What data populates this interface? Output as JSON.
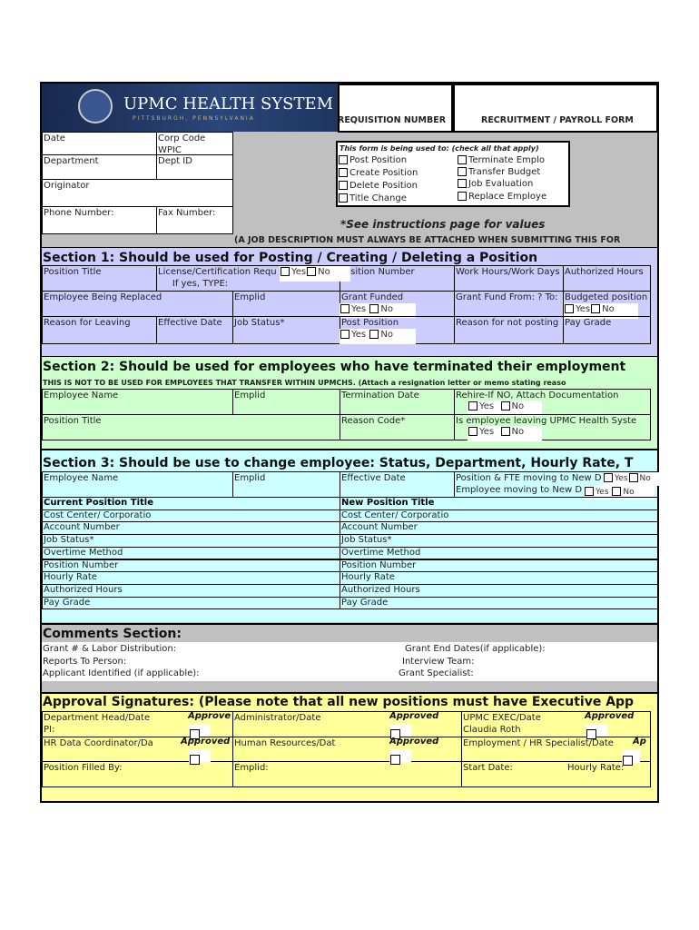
{
  "header": {
    "logo_text": "UPMC HEALTH SYSTEM",
    "logo_subtext": "PITTSBURGH, PENNSYLVANIA",
    "requisition_label": "REQUISITION NUMBER",
    "form_title": "RECRUITMENT / PAYROLL FORM"
  },
  "top": {
    "date": "Date",
    "corp_code": "Corp Code",
    "corp_code_value": "WPIC",
    "department": "Department",
    "dept_id": "Dept ID",
    "originator": "Originator",
    "phone": "Phone Number:",
    "fax": "Fax Number:",
    "instructions": "*See instructions page for values",
    "job_desc_note": "(A JOB DESCRIPTION MUST ALWAYS BE ATTACHED WHEN SUBMITTING THIS FOR"
  },
  "usage": {
    "title": "This form is being used to: (check all that apply)",
    "options": [
      "Post Position",
      "Create Position",
      "Delete Position",
      "Title Change",
      "Terminate Emplo",
      "Transfer Budget",
      "Job Evaluation",
      "Replace Employe"
    ]
  },
  "yes": "Yes",
  "no": "No",
  "section1": {
    "title": "Section 1: Should be used for Posting / Creating / Deleting a Position",
    "position_title": "Position Title",
    "license": "License/Certification Requ",
    "if_yes": "If yes, TYPE:",
    "position_number": "osition Number",
    "work_hours": "Work Hours/Work Days",
    "authorized_hours": "Authorized Hours",
    "employee_replaced": "Employee Being Replaced",
    "emplid": "Emplid",
    "grant_funded": "Grant Funded",
    "grant_fund_from": "Grant Fund From: ?  To:",
    "budgeted_position": "Budgeted position",
    "reason_leaving": "Reason for Leaving",
    "effective_date": "Effective Date",
    "job_status": "Job Status*",
    "post_position": "Post Position",
    "reason_not_posting": "Reason for not posting",
    "pay_grade": "Pay Grade"
  },
  "section2": {
    "title": "Section 2: Should be used for employees who have terminated their employment",
    "note": "THIS IS NOT TO BE USED FOR EMPLOYEES THAT TRANSFER WITHIN UPMCHS. (Attach a resignation letter or memo stating reaso",
    "employee_name": "Employee Name",
    "emplid": "Emplid",
    "termination_date": "Termination Date",
    "rehire": "Rehire-If NO, Attach Documentation",
    "position_title": "Position Title",
    "reason_code": "Reason Code*",
    "leaving": "Is employee leaving UPMC Health Syste"
  },
  "section3": {
    "title": "Section 3: Should be use to change employee: Status, Department, Hourly Rate, T",
    "employee_name": "Employee Name",
    "emplid": "Emplid",
    "effective_date": "Effective Date",
    "position_fte": "Position & FTE moving to New D",
    "employee_moving": "Employee moving to New D",
    "current_title": "Current Position Title",
    "new_title": "New Position Title",
    "current_rows": [
      "Cost Center/ Corporatio",
      "Account Number",
      "Job Status*",
      "Overtime Method",
      "Position Number",
      "Hourly Rate",
      "Authorized Hours",
      "Pay Grade"
    ],
    "new_rows": [
      "Cost Center/ Corporatio",
      "Account Number",
      " Job Status*",
      "Overtime Method",
      "Position Number",
      "Hourly Rate",
      "Authorized Hours",
      "Pay Grade"
    ]
  },
  "comments": {
    "title": "Comments Section:",
    "left": [
      "Grant # & Labor Distribution:",
      "Reports To Person:",
      "Applicant Identified (if applicable):"
    ],
    "right": [
      "Grant End Dates(if applicable):",
      "Interview Team:",
      "Grant Specialist:"
    ]
  },
  "approvals": {
    "title": "Approval Signatures: (Please note that all new positions must have Executive App",
    "dept_head": "Department Head/Date",
    "pi": "PI:",
    "administrator": "Administrator/Date",
    "exec": "UPMC EXEC/Date",
    "exec_name": "Claudia Roth",
    "hr_coord": "HR Data Coordinator/Da",
    "hr": "Human Resources/Dat",
    "employment": "Employment / HR Specialist/Date",
    "approved_short": "Approve",
    "approved": "Approved",
    "approved_cut": "Ap",
    "filled_by": "Position Filled By:",
    "emplid": "Emplid:",
    "start_date": "Start Date:",
    "hourly_rate": "Hourly Rate:"
  },
  "colors": {
    "section1": "#ccccff",
    "section2": "#ccffcc",
    "section3": "#ccffff",
    "approvals": "#ffff99",
    "gray": "#c0c0c0",
    "logo_bg": "#1e3560"
  }
}
